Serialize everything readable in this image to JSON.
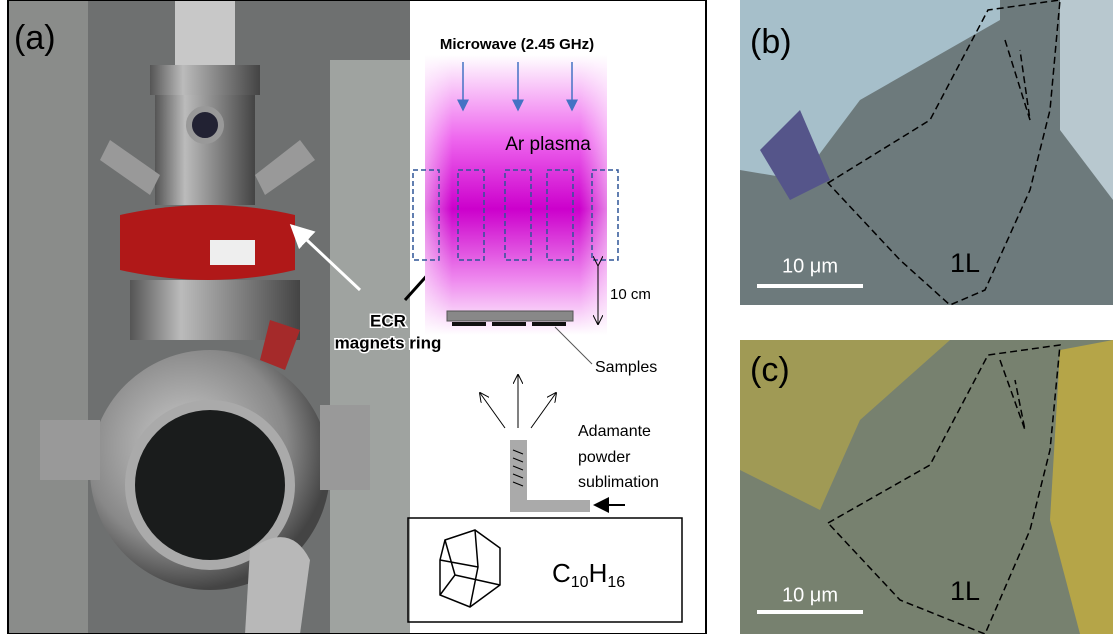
{
  "panels": [
    {
      "label": "(a)",
      "photo_annotation": [
        "ECR",
        "magnets ring"
      ],
      "schematic": {
        "source": "Microwave (2.45 GHz)",
        "plasma": "Ar plasma",
        "distance": "10 cm",
        "samples": "Samples",
        "sublimation": [
          "Adamante",
          "powder",
          "sublimation"
        ],
        "formula": {
          "c": "C",
          "c_count": "10",
          "h": "H",
          "h_count": "16"
        }
      }
    },
    {
      "label": "(b)",
      "scale_bar": "10 μm",
      "layer": "1L"
    },
    {
      "label": "(c)",
      "scale_bar": "10 μm",
      "layer": "1L"
    }
  ]
}
